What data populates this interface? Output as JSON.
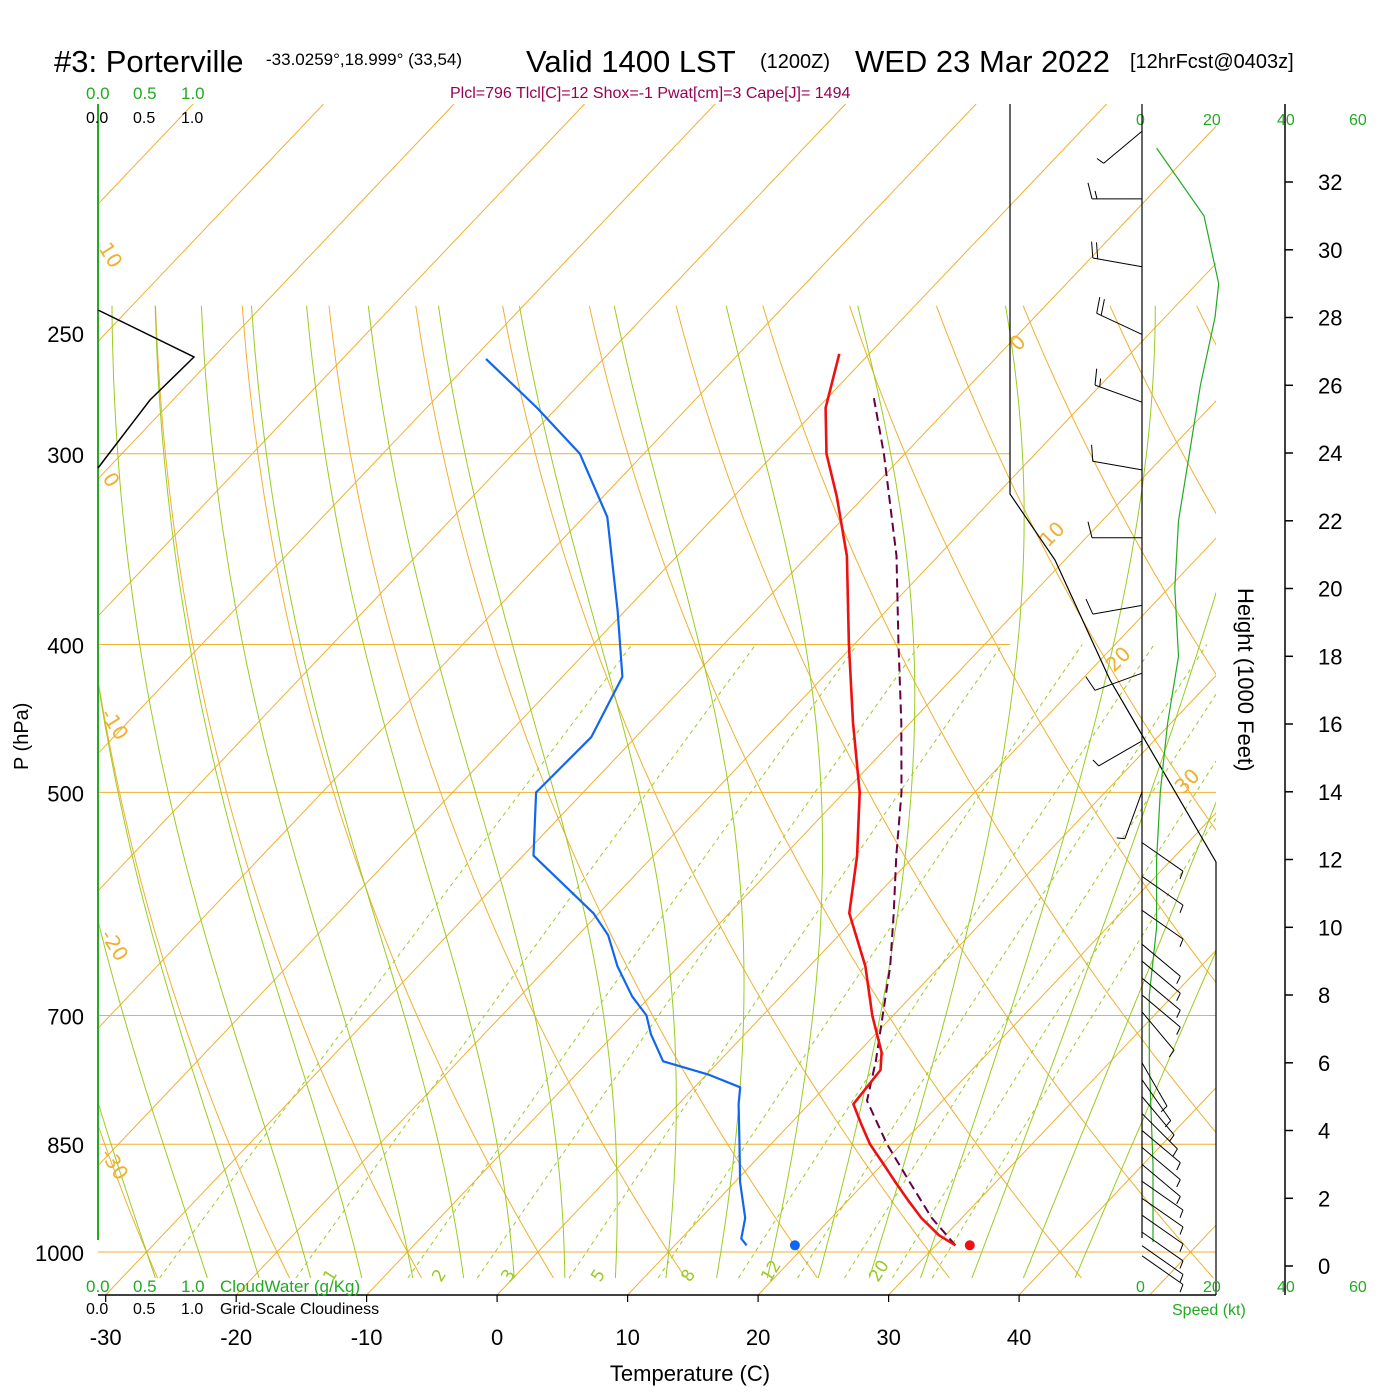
{
  "header": {
    "station": "#3: Porterville",
    "coords": "-33.0259°,18.999° (33,54)",
    "valid": "Valid 1400 LST",
    "utc": "(1200Z)",
    "date": "WED 23 Mar 2022",
    "forecast": "[12hrFcst@0403z]"
  },
  "indices_line": "Plcl=796 Tlcl[C]=12 Shox=-1 Pwat[cm]=3 Cape[J]= 1494",
  "cloud_scale_top": {
    "green": [
      "0.0",
      "0.5",
      "1.0"
    ],
    "black": [
      "0.0",
      "0.5",
      "1.0"
    ]
  },
  "cloud_scale_bottom": {
    "green": [
      "0.0",
      "0.5",
      "1.0"
    ],
    "green_label": "CloudWater (g/Kg)",
    "black": [
      "0.0",
      "0.5",
      "1.0"
    ],
    "black_label": "Grid-Scale Cloudiness"
  },
  "speed_axis": {
    "top_labels": [
      "0",
      "20",
      "40",
      "60"
    ],
    "bottom_labels": [
      "0",
      "20",
      "40",
      "60"
    ],
    "label": "Speed (kt)"
  },
  "colors": {
    "temperature": "#ee1111",
    "dewpoint": "#1166ee",
    "parcel": "#660044",
    "isobar": "#f0b030",
    "isotherm": "#f0b030",
    "dry_adiabat": "#f0b030",
    "moist_adiabat": "#99cc22",
    "mixing_ratio": "#99cc22",
    "wind_speed": "#22aa22",
    "wind_barb": "#000000"
  },
  "chart_data": {
    "type": "skew-t",
    "xlabel": "Temperature (C)",
    "ylabel": "P (hPa)",
    "y2label": "Height (1000 Feet)",
    "x_ticks": [
      -30,
      -20,
      -10,
      0,
      10,
      20,
      30,
      40
    ],
    "pressure_ticks": [
      250,
      300,
      400,
      500,
      700,
      850,
      1000
    ],
    "height_ticks_kft": [
      0,
      2,
      4,
      6,
      8,
      10,
      12,
      14,
      16,
      18,
      20,
      22,
      24,
      26,
      28,
      30,
      32
    ],
    "xlim": [
      -33,
      50
    ],
    "plim": [
      250,
      1035
    ],
    "isotherm_labels": [
      10,
      0,
      -10,
      -20,
      -30,
      0,
      10,
      20,
      30
    ],
    "mixing_ratio_labels_gkg": [
      1,
      2,
      3,
      5,
      8,
      12,
      20
    ],
    "temperature_profile": [
      {
        "p": 990,
        "t": 31.5
      },
      {
        "p": 975,
        "t": 29.5
      },
      {
        "p": 950,
        "t": 26.9
      },
      {
        "p": 925,
        "t": 24.6
      },
      {
        "p": 900,
        "t": 22.3
      },
      {
        "p": 875,
        "t": 20.0
      },
      {
        "p": 850,
        "t": 17.6
      },
      {
        "p": 825,
        "t": 15.5
      },
      {
        "p": 800,
        "t": 13.4
      },
      {
        "p": 780,
        "t": 13.2
      },
      {
        "p": 760,
        "t": 13.0
      },
      {
        "p": 740,
        "t": 11.8
      },
      {
        "p": 700,
        "t": 8.4
      },
      {
        "p": 650,
        "t": 4.3
      },
      {
        "p": 600,
        "t": -0.8
      },
      {
        "p": 550,
        "t": -4.4
      },
      {
        "p": 500,
        "t": -8.8
      },
      {
        "p": 450,
        "t": -14.4
      },
      {
        "p": 400,
        "t": -20.4
      },
      {
        "p": 350,
        "t": -27.0
      },
      {
        "p": 320,
        "t": -32.1
      },
      {
        "p": 300,
        "t": -36.0
      },
      {
        "p": 280,
        "t": -39.4
      },
      {
        "p": 258,
        "t": -42.3
      }
    ],
    "dewpoint_profile": [
      {
        "p": 990,
        "t": 15.5
      },
      {
        "p": 980,
        "t": 14.6
      },
      {
        "p": 950,
        "t": 13.4
      },
      {
        "p": 900,
        "t": 10.4
      },
      {
        "p": 850,
        "t": 7.6
      },
      {
        "p": 800,
        "t": 4.6
      },
      {
        "p": 780,
        "t": 3.5
      },
      {
        "p": 765,
        "t": 0.1
      },
      {
        "p": 750,
        "t": -4.3
      },
      {
        "p": 720,
        "t": -7.2
      },
      {
        "p": 700,
        "t": -8.9
      },
      {
        "p": 680,
        "t": -11.4
      },
      {
        "p": 650,
        "t": -14.7
      },
      {
        "p": 620,
        "t": -17.7
      },
      {
        "p": 600,
        "t": -20.4
      },
      {
        "p": 550,
        "t": -29.2
      },
      {
        "p": 500,
        "t": -33.6
      },
      {
        "p": 460,
        "t": -33.4
      },
      {
        "p": 420,
        "t": -35.4
      },
      {
        "p": 380,
        "t": -40.6
      },
      {
        "p": 330,
        "t": -48.2
      },
      {
        "p": 300,
        "t": -54.9
      },
      {
        "p": 280,
        "t": -61.5
      },
      {
        "p": 260,
        "t": -69.0
      }
    ],
    "parcel_profile": [
      {
        "p": 990,
        "t": 31.5
      },
      {
        "p": 950,
        "t": 27.7
      },
      {
        "p": 900,
        "t": 23.4
      },
      {
        "p": 850,
        "t": 18.9
      },
      {
        "p": 796,
        "t": 14.2
      },
      {
        "p": 750,
        "t": 12.0
      },
      {
        "p": 700,
        "t": 9.2
      },
      {
        "p": 650,
        "t": 6.2
      },
      {
        "p": 600,
        "t": 2.6
      },
      {
        "p": 550,
        "t": -1.4
      },
      {
        "p": 500,
        "t": -5.6
      },
      {
        "p": 450,
        "t": -10.7
      },
      {
        "p": 400,
        "t": -16.6
      },
      {
        "p": 350,
        "t": -23.2
      },
      {
        "p": 300,
        "t": -31.6
      },
      {
        "p": 275,
        "t": -36.6
      }
    ],
    "surface_temperature": 32.6,
    "surface_dewpoint": 19.2,
    "wind_speed_profile": [
      {
        "h": 0.7,
        "spd": 3
      },
      {
        "h": 3,
        "spd": 3
      },
      {
        "h": 6,
        "spd": 2
      },
      {
        "h": 8,
        "spd": 2
      },
      {
        "h": 10,
        "spd": 4
      },
      {
        "h": 12,
        "spd": 4
      },
      {
        "h": 14,
        "spd": 5
      },
      {
        "h": 16,
        "spd": 7
      },
      {
        "h": 18,
        "spd": 10
      },
      {
        "h": 20,
        "spd": 9
      },
      {
        "h": 22,
        "spd": 10
      },
      {
        "h": 24,
        "spd": 13
      },
      {
        "h": 26,
        "spd": 16
      },
      {
        "h": 28,
        "spd": 20
      },
      {
        "h": 29,
        "spd": 21
      },
      {
        "h": 31,
        "spd": 17
      },
      {
        "h": 33,
        "spd": 4
      }
    ],
    "wind_barbs": [
      {
        "h": 0.3,
        "dir": 125,
        "spd": 5
      },
      {
        "h": 0.6,
        "dir": 125,
        "spd": 5
      },
      {
        "h": 1.0,
        "dir": 125,
        "spd": 5
      },
      {
        "h": 1.5,
        "dir": 125,
        "spd": 5
      },
      {
        "h": 2.0,
        "dir": 125,
        "spd": 5
      },
      {
        "h": 2.5,
        "dir": 125,
        "spd": 5
      },
      {
        "h": 3.0,
        "dir": 130,
        "spd": 5
      },
      {
        "h": 3.5,
        "dir": 130,
        "spd": 5
      },
      {
        "h": 4.0,
        "dir": 130,
        "spd": 5
      },
      {
        "h": 4.5,
        "dir": 135,
        "spd": 5
      },
      {
        "h": 5.0,
        "dir": 140,
        "spd": 5
      },
      {
        "h": 5.5,
        "dir": 145,
        "spd": 5
      },
      {
        "h": 6.0,
        "dir": 150,
        "spd": 5
      },
      {
        "h": 7.5,
        "dir": 140,
        "spd": 5
      },
      {
        "h": 8.0,
        "dir": 130,
        "spd": 5
      },
      {
        "h": 8.5,
        "dir": 130,
        "spd": 5
      },
      {
        "h": 9.0,
        "dir": 130,
        "spd": 5
      },
      {
        "h": 9.5,
        "dir": 130,
        "spd": 5
      },
      {
        "h": 10.5,
        "dir": 125,
        "spd": 5
      },
      {
        "h": 11.5,
        "dir": 125,
        "spd": 5
      },
      {
        "h": 12.5,
        "dir": 125,
        "spd": 5
      },
      {
        "h": 14.0,
        "dir": 200,
        "spd": 5
      },
      {
        "h": 15.5,
        "dir": 240,
        "spd": 5
      },
      {
        "h": 17.5,
        "dir": 250,
        "spd": 10
      },
      {
        "h": 19.5,
        "dir": 260,
        "spd": 10
      },
      {
        "h": 21.5,
        "dir": 270,
        "spd": 10
      },
      {
        "h": 23.5,
        "dir": 280,
        "spd": 10
      },
      {
        "h": 25.5,
        "dir": 290,
        "spd": 15
      },
      {
        "h": 27.5,
        "dir": 295,
        "spd": 20
      },
      {
        "h": 29.5,
        "dir": 280,
        "spd": 20
      },
      {
        "h": 31.5,
        "dir": 270,
        "spd": 15
      },
      {
        "h": 33.5,
        "dir": 230,
        "spd": 5
      }
    ]
  }
}
